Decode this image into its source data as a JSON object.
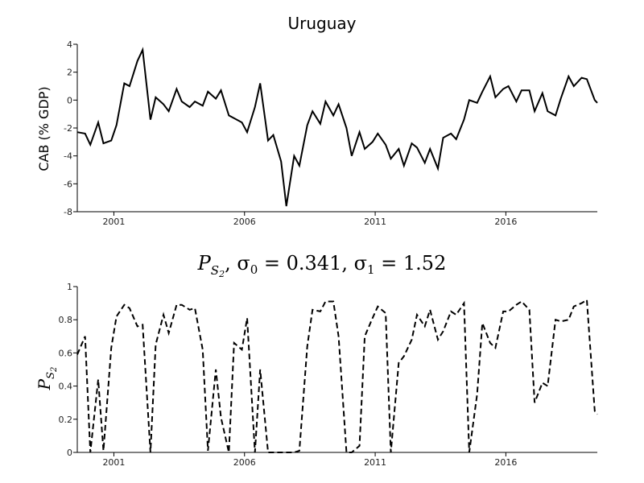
{
  "chart_data": [
    {
      "type": "line",
      "title": "Uruguay",
      "xlabel": "",
      "ylabel": "CAB (% GDP)",
      "xlim": [
        1999.6,
        2019.5
      ],
      "ylim": [
        -8,
        4
      ],
      "xticks": [
        2001,
        2006,
        2011,
        2016
      ],
      "yticks": [
        -8,
        -6,
        -4,
        -2,
        0,
        2,
        4
      ],
      "line_style": "solid",
      "series": [
        {
          "x": [
            1999.6,
            1999.9,
            2000.1,
            2000.4,
            2000.6,
            2000.9,
            2001.1,
            2001.4,
            2001.6,
            2001.9,
            2002.1,
            2002.4,
            2002.6,
            2002.9,
            2003.1,
            2003.4,
            2003.6,
            2003.9,
            2004.1,
            2004.4,
            2004.6,
            2004.9,
            2005.1,
            2005.4,
            2005.6,
            2005.9,
            2006.1,
            2006.4,
            2006.6,
            2006.9,
            2007.1,
            2007.4,
            2007.6,
            2007.9,
            2008.1,
            2008.4,
            2008.6,
            2008.9,
            2009.1,
            2009.4,
            2009.6,
            2009.9,
            2010.1,
            2010.4,
            2010.6,
            2010.9,
            2011.1,
            2011.4,
            2011.6,
            2011.9,
            2012.1,
            2012.4,
            2012.6,
            2012.9,
            2013.1,
            2013.4,
            2013.6,
            2013.9,
            2014.1,
            2014.4,
            2014.6,
            2014.9,
            2015.1,
            2015.4,
            2015.6,
            2015.9,
            2016.1,
            2016.4,
            2016.6,
            2016.9,
            2017.1,
            2017.4,
            2017.6,
            2017.9,
            2018.1,
            2018.4,
            2018.6,
            2018.9,
            2019.1,
            2019.4,
            2019.5
          ],
          "y": [
            -2.3,
            -2.4,
            -3.2,
            -1.6,
            -3.1,
            -2.9,
            -1.8,
            1.2,
            1.0,
            2.8,
            3.6,
            -1.4,
            0.2,
            -0.3,
            -0.8,
            0.8,
            -0.1,
            -0.5,
            -0.1,
            -0.4,
            0.6,
            0.1,
            0.7,
            -1.1,
            -1.3,
            -1.6,
            -2.3,
            -0.5,
            1.2,
            -2.9,
            -2.5,
            -4.4,
            -7.6,
            -4.0,
            -4.7,
            -1.8,
            -0.8,
            -1.7,
            -0.1,
            -1.1,
            -0.3,
            -2.0,
            -4.0,
            -2.3,
            -3.5,
            -3.0,
            -2.4,
            -3.2,
            -4.2,
            -3.5,
            -4.7,
            -3.1,
            -3.4,
            -4.5,
            -3.5,
            -4.9,
            -2.7,
            -2.4,
            -2.8,
            -1.4,
            0.0,
            -0.2,
            0.6,
            1.7,
            0.2,
            0.8,
            1.0,
            -0.1,
            0.7,
            0.7,
            -0.8,
            0.5,
            -0.8,
            -1.1,
            0.1,
            1.7,
            1.0,
            1.6,
            1.5,
            0.0,
            -0.2
          ]
        }
      ]
    },
    {
      "type": "line",
      "title": "P_{S_2}, σ_0 = 0.341, σ_1 = 1.52",
      "xlabel": "",
      "ylabel": "P_{S_2}",
      "xlim": [
        1999.6,
        2019.5
      ],
      "ylim": [
        0,
        1
      ],
      "xticks": [
        2001,
        2006,
        2011,
        2016
      ],
      "yticks": [
        0,
        0.2,
        0.4,
        0.6,
        0.8,
        1
      ],
      "line_style": "dashed",
      "series": [
        {
          "x": [
            1999.6,
            1999.9,
            2000.1,
            2000.4,
            2000.6,
            2000.9,
            2001.1,
            2001.4,
            2001.6,
            2001.9,
            2002.1,
            2002.4,
            2002.6,
            2002.9,
            2003.1,
            2003.4,
            2003.6,
            2003.9,
            2004.1,
            2004.4,
            2004.6,
            2004.9,
            2005.1,
            2005.4,
            2005.6,
            2005.9,
            2006.1,
            2006.4,
            2006.6,
            2006.9,
            2007.1,
            2007.4,
            2007.6,
            2007.9,
            2008.1,
            2008.4,
            2008.6,
            2008.9,
            2009.1,
            2009.4,
            2009.6,
            2009.9,
            2010.1,
            2010.4,
            2010.6,
            2010.9,
            2011.1,
            2011.4,
            2011.6,
            2011.9,
            2012.1,
            2012.4,
            2012.6,
            2012.9,
            2013.1,
            2013.4,
            2013.6,
            2013.9,
            2014.1,
            2014.4,
            2014.6,
            2014.9,
            2015.1,
            2015.4,
            2015.6,
            2015.9,
            2016.1,
            2016.4,
            2016.6,
            2016.9,
            2017.1,
            2017.4,
            2017.6,
            2017.9,
            2018.1,
            2018.4,
            2018.6,
            2018.9,
            2019.1,
            2019.4,
            2019.5
          ],
          "y": [
            0.59,
            0.7,
            0.0,
            0.44,
            0.01,
            0.63,
            0.82,
            0.89,
            0.87,
            0.76,
            0.77,
            0.0,
            0.65,
            0.83,
            0.72,
            0.89,
            0.89,
            0.86,
            0.87,
            0.62,
            0.01,
            0.5,
            0.21,
            0.0,
            0.66,
            0.62,
            0.81,
            0.0,
            0.5,
            0.0,
            0.0,
            0.0,
            0.0,
            0.0,
            0.01,
            0.64,
            0.86,
            0.85,
            0.91,
            0.91,
            0.7,
            0.0,
            0.0,
            0.04,
            0.7,
            0.81,
            0.88,
            0.84,
            0.0,
            0.54,
            0.58,
            0.68,
            0.83,
            0.76,
            0.86,
            0.68,
            0.73,
            0.85,
            0.83,
            0.9,
            0.0,
            0.35,
            0.78,
            0.66,
            0.63,
            0.85,
            0.85,
            0.89,
            0.91,
            0.86,
            0.3,
            0.42,
            0.4,
            0.8,
            0.79,
            0.8,
            0.88,
            0.9,
            0.92,
            0.25,
            0.23
          ]
        }
      ]
    }
  ]
}
